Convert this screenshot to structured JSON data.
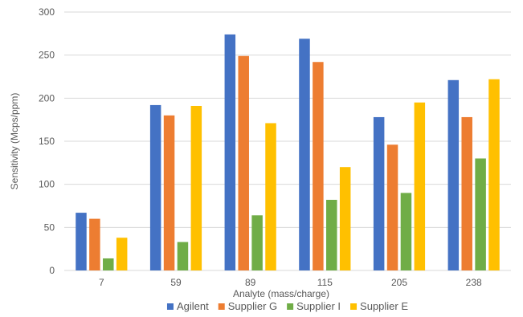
{
  "chart_data": {
    "type": "bar",
    "categories": [
      "7",
      "59",
      "89",
      "115",
      "205",
      "238"
    ],
    "series": [
      {
        "name": "Agilent",
        "color": "#4472c4",
        "values": [
          67,
          192,
          274,
          269,
          178,
          221
        ]
      },
      {
        "name": "Supplier G",
        "color": "#ed7d31",
        "values": [
          60,
          180,
          249,
          242,
          146,
          178
        ]
      },
      {
        "name": "Supplier I",
        "color": "#70ad47",
        "values": [
          14,
          33,
          64,
          82,
          90,
          130
        ]
      },
      {
        "name": "Supplier E",
        "color": "#ffc000",
        "values": [
          38,
          191,
          171,
          120,
          195,
          222
        ]
      }
    ],
    "title": "",
    "xlabel": "Analyte (mass/charge)",
    "ylabel": "Sensitivity (Mcps/ppm)",
    "ylim": [
      0,
      300
    ],
    "yticks": [
      0,
      50,
      100,
      150,
      200,
      250,
      300
    ],
    "grid": true,
    "legend_position": "bottom"
  }
}
